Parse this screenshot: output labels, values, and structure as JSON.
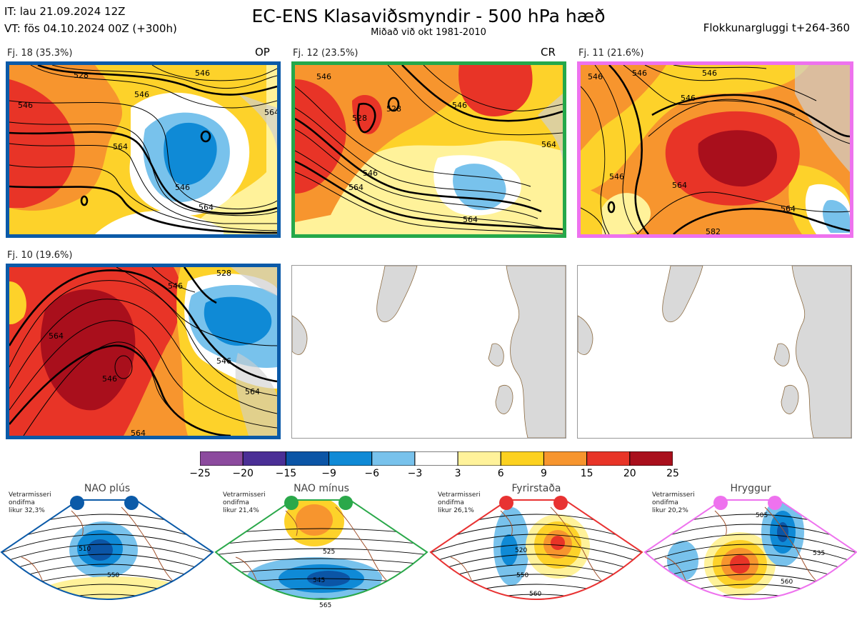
{
  "header": {
    "it_line": "IT: lau 21.09.2024 12Z",
    "vt_line": "VT: fös 04.10.2024 00Z  (+300h)",
    "title": "EC-ENS Klasaviðsmyndir - 500 hPa hæð",
    "subtitle": "Miðað við okt 1981-2010",
    "window": "Flokkunargluggi t+264-360"
  },
  "panels": [
    {
      "label": "Fj. 18 (35.3%)",
      "tag": "OP",
      "border": "#0b5aa8",
      "contours": [
        "546",
        "528",
        "546",
        "546",
        "564",
        "546",
        "564",
        "564"
      ]
    },
    {
      "label": "Fj. 12 (23.5%)",
      "tag": "CR",
      "border": "#24a84a",
      "contours": [
        "528",
        "528",
        "546",
        "546",
        "546",
        "564",
        "564",
        "564"
      ]
    },
    {
      "label": "Fj. 11 (21.6%)",
      "tag": "",
      "border": "#ee72ee",
      "contours": [
        "546",
        "546",
        "546",
        "546",
        "546",
        "564",
        "564",
        "582"
      ]
    },
    {
      "label": "Fj. 10 (19.6%)",
      "tag": "",
      "border": "#0b5aa8",
      "contours": [
        "546",
        "528",
        "564",
        "546",
        "546",
        "564",
        "564"
      ]
    }
  ],
  "colorbar": {
    "colors": [
      "#8c4a9e",
      "#4b2f96",
      "#0b55a6",
      "#0f8ad6",
      "#78c2ec",
      "#ffffff",
      "#fff29a",
      "#fcd11f",
      "#f7952e",
      "#e83427",
      "#a90f1c"
    ],
    "ticks": [
      "−25",
      "−20",
      "−15",
      "−9",
      "−6",
      "−3",
      "3",
      "6",
      "9",
      "15",
      "20",
      "25"
    ]
  },
  "regimes": [
    {
      "title": "NAO plús",
      "color": "#0b5aa8",
      "note1": "Vetrarmisseri",
      "note2": "ondifma",
      "note3": "likur 32,3%",
      "labels": [
        "510",
        "550"
      ]
    },
    {
      "title": "NAO mínus",
      "color": "#2aa84a",
      "note1": "Vetrarmisseri",
      "note2": "ondifma",
      "note3": "likur 21,4%",
      "labels": [
        "525",
        "545",
        "565"
      ]
    },
    {
      "title": "Fyrirstaða",
      "color": "#e83232",
      "note1": "Vetrarmisseri",
      "note2": "ondifma",
      "note3": "likur 26,1%",
      "labels": [
        "520",
        "550",
        "560"
      ]
    },
    {
      "title": "Hryggur",
      "color": "#ee72ee",
      "note1": "Vetrarmisseri",
      "note2": "ondifma",
      "note3": "likur 20,2%",
      "labels": [
        "505",
        "535",
        "560"
      ]
    }
  ]
}
